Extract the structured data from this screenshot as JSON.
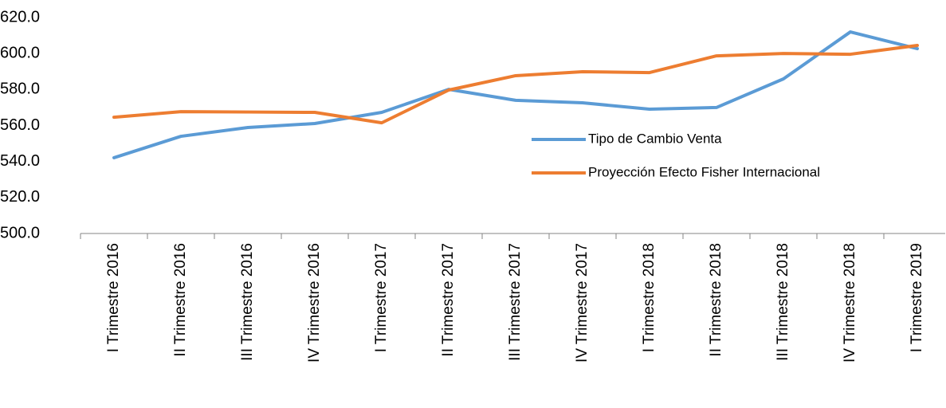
{
  "chart_data": {
    "type": "line",
    "categories": [
      "I Trimestre 2016",
      "II Trimestre 2016",
      "III Trimestre 2016",
      "IV Trimestre 2016",
      "I Trimestre 2017",
      "II Trimestre 2017",
      "III Trimestre 2017",
      "IV Trimestre 2017",
      "I Trimestre 2018",
      "II Trimestre 2018",
      "III Trimestre 2018",
      "IV Trimestre 2018",
      "I Trimestre 2019"
    ],
    "series": [
      {
        "name": "Tipo de Cambio Venta",
        "color": "#5b9bd5",
        "values": [
          542.1,
          554.0,
          558.9,
          561.1,
          567.3,
          580.1,
          574.0,
          572.6,
          569.1,
          570.0,
          585.9,
          612.0,
          602.7
        ]
      },
      {
        "name": "Proyección Efecto Fisher Internacional",
        "color": "#ed7d31",
        "values": [
          564.6,
          567.7,
          567.5,
          567.3,
          561.5,
          579.7,
          587.7,
          589.9,
          589.4,
          598.7,
          600.0,
          599.6,
          604.5
        ]
      }
    ],
    "ylim": [
      500,
      620
    ],
    "yticks": [
      {
        "value": 500,
        "label": "500.0"
      },
      {
        "value": 520,
        "label": "520.0"
      },
      {
        "value": 540,
        "label": "540.0"
      },
      {
        "value": 560,
        "label": "560.0"
      },
      {
        "value": 580,
        "label": "580.0"
      },
      {
        "value": 600,
        "label": "600.0"
      },
      {
        "value": 620,
        "label": "620.0"
      }
    ]
  }
}
